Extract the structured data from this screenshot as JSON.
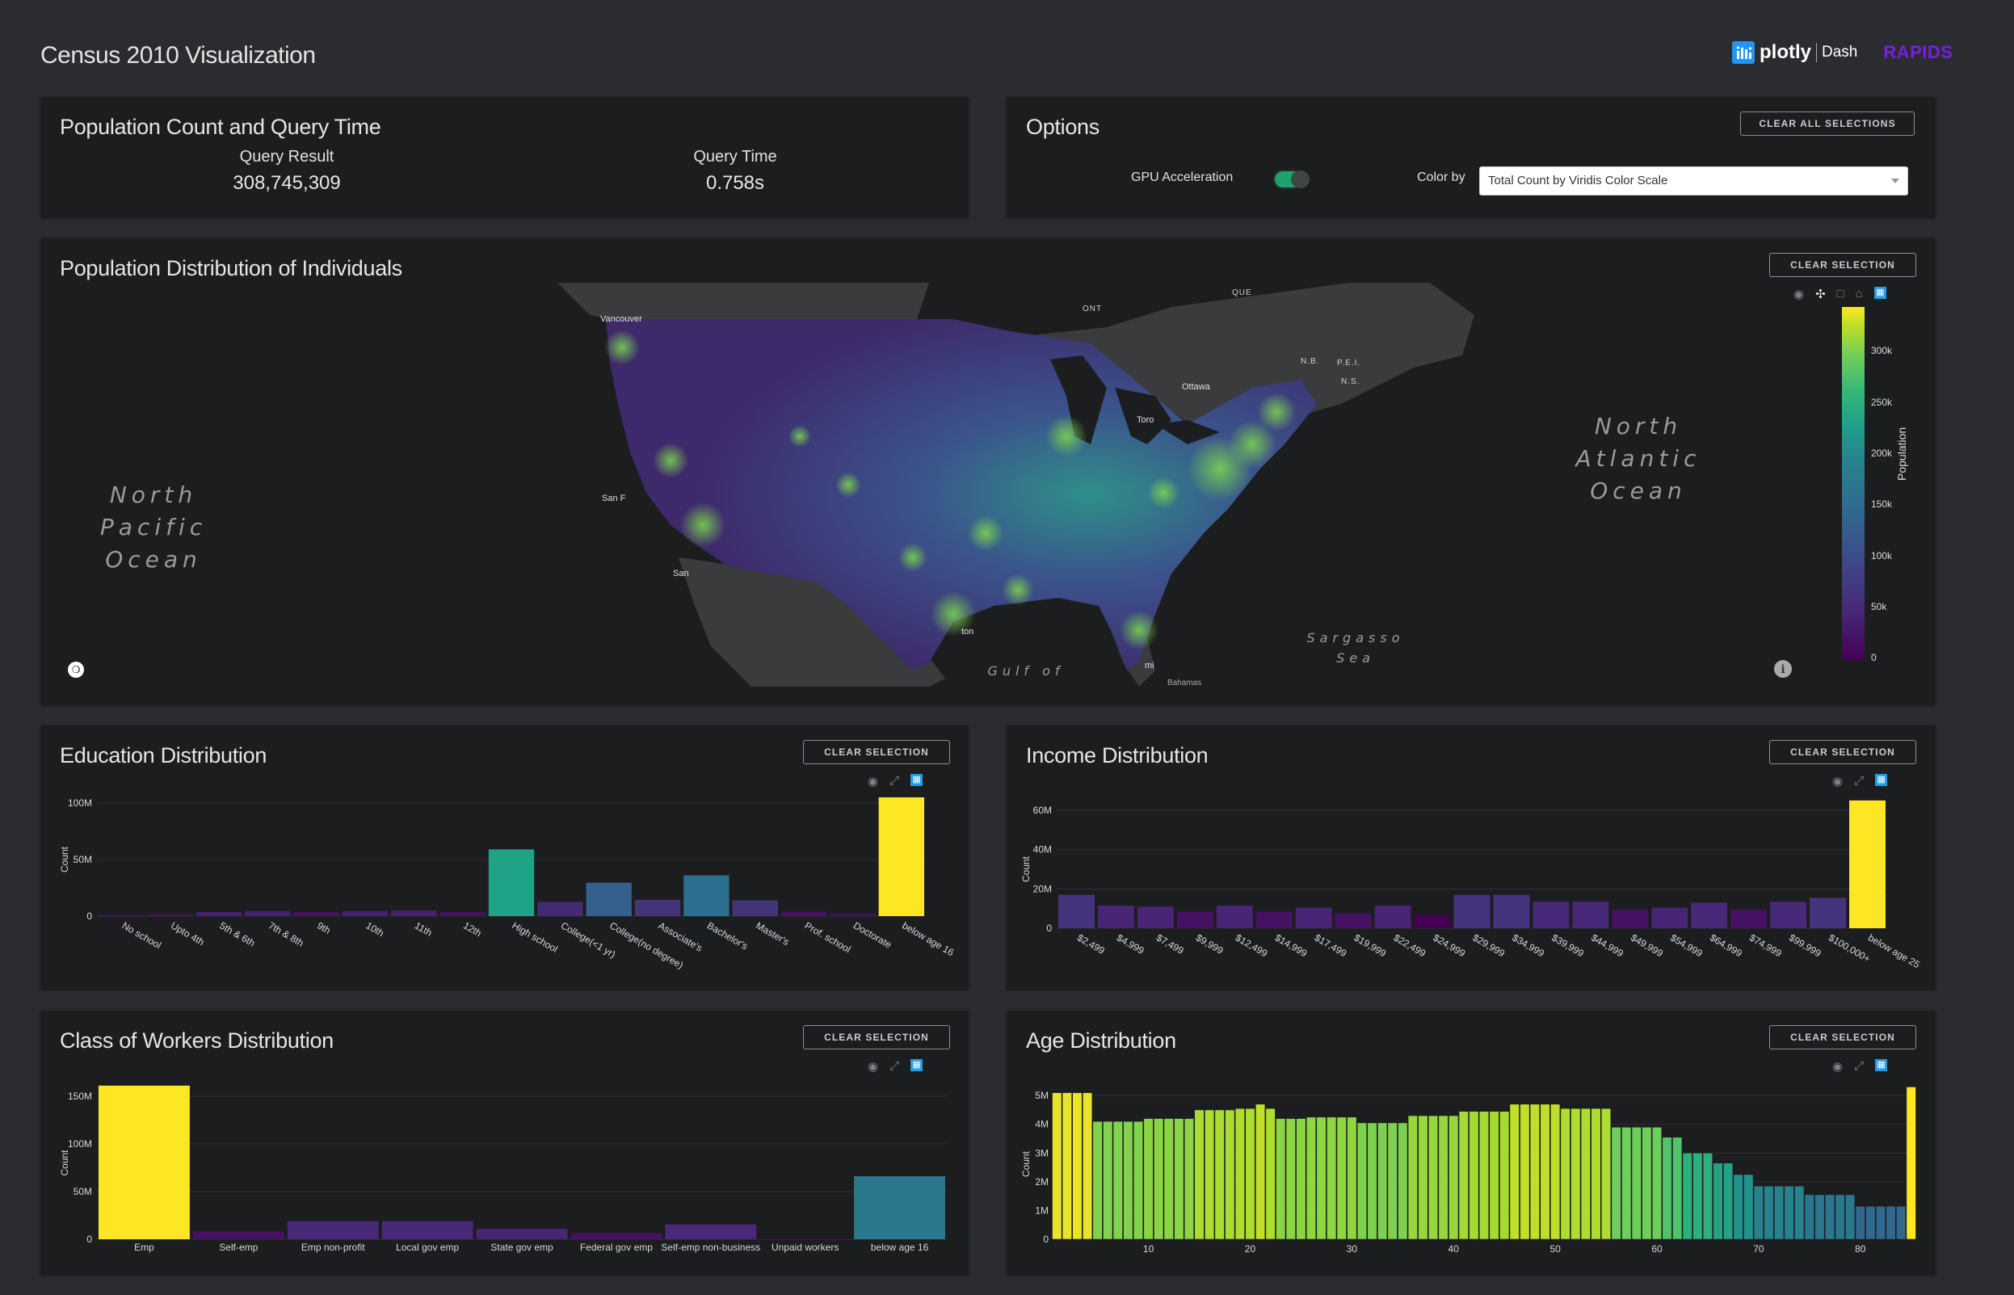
{
  "app": {
    "title": "Census 2010 Visualization",
    "logo_plotly": "plotly",
    "logo_dash": "Dash",
    "logo_rapids": "RAPIDS"
  },
  "population": {
    "title": "Population Count and Query Time",
    "query_result_label": "Query Result",
    "query_result_value": "308,745,309",
    "query_time_label": "Query Time",
    "query_time_value": "0.758s"
  },
  "options": {
    "title": "Options",
    "clear_all": "CLEAR ALL SELECTIONS",
    "gpu_label": "GPU Acceleration",
    "gpu_enabled": true,
    "color_by_label": "Color by",
    "color_by_value": "Total Count by Viridis Color Scale"
  },
  "map": {
    "title": "Population Distribution of Individuals",
    "clear": "CLEAR SELECTION",
    "ocean_pacific": [
      "North",
      "Pacific",
      "Ocean"
    ],
    "ocean_atlantic": [
      "North",
      "Atlantic",
      "Ocean"
    ],
    "sargasso": [
      "Sargasso",
      "Sea"
    ],
    "gulf": "Gulf of",
    "labels": {
      "ont": "ONT",
      "que": "QUE",
      "nb": "N.B.",
      "pei": "P.E.I.",
      "ns": "N.S.",
      "vancouver": "Vancouver",
      "ottawa": "Ottawa",
      "toronto": "Toro",
      "sanfrancisco": "San F",
      "sandiego": "San",
      "houston": "ton",
      "miami": "mi",
      "bahamas": "Bahamas"
    },
    "colorbar": {
      "title": "Population",
      "ticks": [
        "0",
        "50k",
        "100k",
        "150k",
        "200k",
        "250k",
        "300k"
      ]
    }
  },
  "clear_selection": "CLEAR SELECTION",
  "education": {
    "title": "Education Distribution",
    "chart_data": {
      "type": "bar",
      "ylabel": "Count",
      "ytick_labels": [
        "0",
        "50M",
        "100M"
      ],
      "ylim": [
        0,
        100000000
      ],
      "categories": [
        "No school",
        "Upto 4th",
        "5th & 6th",
        "7th & 8th",
        "9th",
        "10th",
        "11th",
        "12th",
        "High school",
        "College(<1 yr)",
        "College(no degree)",
        "Associate's",
        "Bachelor's",
        "Master's",
        "Prof. school",
        "Doctorate",
        "below age 16"
      ],
      "values": [
        1000000,
        1500000,
        3500000,
        4500000,
        3500000,
        4500000,
        5000000,
        3500000,
        59000000,
        12500000,
        29500000,
        14500000,
        36000000,
        14000000,
        4000000,
        2000000,
        105000000
      ],
      "colors": [
        "#471163",
        "#471163",
        "#482073",
        "#482073",
        "#471163",
        "#482073",
        "#482073",
        "#471163",
        "#1fa286",
        "#432a75",
        "#355f8d",
        "#433578",
        "#2d6f8e",
        "#433578",
        "#471163",
        "#471163",
        "#fde725"
      ]
    }
  },
  "income": {
    "title": "Income Distribution",
    "chart_data": {
      "type": "bar",
      "ylabel": "Count",
      "ytick_labels": [
        "0",
        "20M",
        "40M",
        "60M"
      ],
      "ylim": [
        0,
        60000000
      ],
      "categories": [
        "$2,499",
        "$4,999",
        "$7,499",
        "$9,999",
        "$12,499",
        "$14,999",
        "$17,499",
        "$19,999",
        "$22,499",
        "$24,999",
        "$29,999",
        "$34,999",
        "$39,999",
        "$44,999",
        "$49,999",
        "$54,999",
        "$64,999",
        "$74,999",
        "$99,999",
        "$100,000+",
        "below age 25"
      ],
      "values": [
        17000000,
        11500000,
        11000000,
        8500000,
        11500000,
        8500000,
        10500000,
        7500000,
        11500000,
        7000000,
        17000000,
        17000000,
        13500000,
        13500000,
        9500000,
        10500000,
        13000000,
        9500000,
        13500000,
        15500000,
        65000000
      ],
      "colors": [
        "#46337e",
        "#482475",
        "#482475",
        "#471163",
        "#482475",
        "#471163",
        "#482475",
        "#471163",
        "#482475",
        "#440154",
        "#46337e",
        "#46337e",
        "#482878",
        "#482878",
        "#471163",
        "#482475",
        "#482878",
        "#471163",
        "#482878",
        "#46337e",
        "#fde725"
      ]
    }
  },
  "workers": {
    "title": "Class of Workers Distribution",
    "chart_data": {
      "type": "bar",
      "ylabel": "Count",
      "ytick_labels": [
        "0",
        "50M",
        "100M",
        "150M"
      ],
      "ylim": [
        0,
        160000000
      ],
      "categories": [
        "Emp",
        "Self-emp",
        "Emp non-profit",
        "Local gov emp",
        "State gov emp",
        "Federal gov emp",
        "Self-emp non-business",
        "Unpaid workers",
        "below age 16"
      ],
      "values": [
        161000000,
        8500000,
        19000000,
        19000000,
        11000000,
        6500000,
        15500000,
        500000,
        66000000
      ],
      "colors": [
        "#fde725",
        "#471163",
        "#482878",
        "#482878",
        "#482475",
        "#471163",
        "#482878",
        "#440154",
        "#2a788e"
      ]
    }
  },
  "age": {
    "title": "Age Distribution",
    "chart_data": {
      "type": "bar",
      "ylabel": "Count",
      "ytick_labels": [
        "0",
        "1M",
        "2M",
        "3M",
        "4M",
        "5M"
      ],
      "xtick_labels": [
        "10",
        "20",
        "30",
        "40",
        "50",
        "60",
        "70",
        "80"
      ],
      "ylim": [
        0,
        5200000
      ],
      "x": [
        1,
        2,
        3,
        4,
        5,
        6,
        7,
        8,
        9,
        10,
        11,
        12,
        13,
        14,
        15,
        16,
        17,
        18,
        19,
        20,
        21,
        22,
        23,
        24,
        25,
        26,
        27,
        28,
        29,
        30,
        31,
        32,
        33,
        34,
        35,
        36,
        37,
        38,
        39,
        40,
        41,
        42,
        43,
        44,
        45,
        46,
        47,
        48,
        49,
        50,
        51,
        52,
        53,
        54,
        55,
        56,
        57,
        58,
        59,
        60,
        61,
        62,
        63,
        64,
        65,
        66,
        67,
        68,
        69,
        70,
        71,
        72,
        73,
        74,
        75,
        76,
        77,
        78,
        79,
        80,
        81,
        82,
        83,
        84,
        85
      ],
      "values": [
        5100000,
        5100000,
        5100000,
        5100000,
        4100000,
        4100000,
        4100000,
        4100000,
        4100000,
        4200000,
        4200000,
        4200000,
        4200000,
        4200000,
        4500000,
        4500000,
        4500000,
        4500000,
        4550000,
        4550000,
        4700000,
        4550000,
        4200000,
        4200000,
        4200000,
        4250000,
        4250000,
        4250000,
        4250000,
        4250000,
        4050000,
        4050000,
        4050000,
        4050000,
        4050000,
        4300000,
        4300000,
        4300000,
        4300000,
        4300000,
        4450000,
        4450000,
        4450000,
        4450000,
        4450000,
        4700000,
        4700000,
        4700000,
        4700000,
        4700000,
        4550000,
        4550000,
        4550000,
        4550000,
        4550000,
        3900000,
        3900000,
        3900000,
        3900000,
        3900000,
        3550000,
        3550000,
        3000000,
        3000000,
        3000000,
        2650000,
        2650000,
        2250000,
        2250000,
        1850000,
        1850000,
        1850000,
        1850000,
        1850000,
        1550000,
        1550000,
        1550000,
        1550000,
        1550000,
        1150000,
        1150000,
        1150000,
        1150000,
        1150000,
        5300000
      ]
    }
  }
}
